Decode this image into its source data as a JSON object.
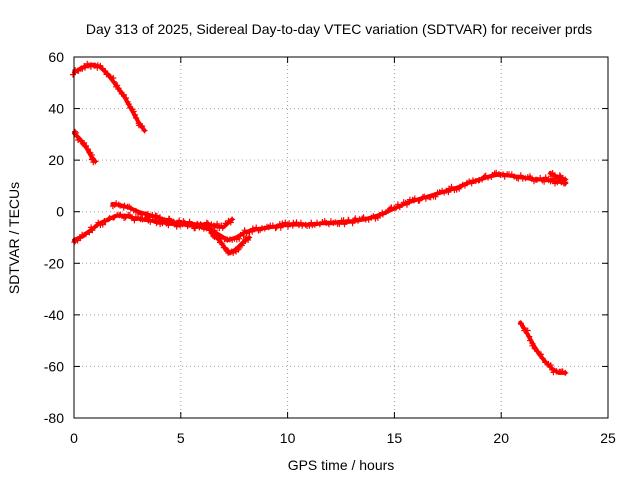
{
  "chart_data": {
    "type": "scatter",
    "title": "Day 313 of 2025, Sidereal Day-to-day VTEC variation (SDTVAR) for receiver prds",
    "xlabel": "GPS time / hours",
    "ylabel": "SDTVAR / TECUs",
    "xlim": [
      0,
      25
    ],
    "ylim": [
      -80,
      60
    ],
    "xticks": [
      0,
      5,
      10,
      15,
      20,
      25
    ],
    "yticks": [
      -80,
      -60,
      -40,
      -20,
      0,
      20,
      40,
      60
    ],
    "xtick_labels": [
      "0",
      "5",
      "10",
      "15",
      "20",
      "25"
    ],
    "ytick_labels": [
      "-80",
      "-60",
      "-40",
      "-20",
      "0",
      "20",
      "40",
      "60"
    ],
    "grid": true,
    "color": "#ff0000",
    "series": [
      {
        "name": "top-left arc",
        "points": [
          [
            0,
            54
          ],
          [
            0.3,
            55.5
          ],
          [
            0.6,
            56.5
          ],
          [
            0.9,
            57
          ],
          [
            1.2,
            56.3
          ],
          [
            1.5,
            54
          ],
          [
            1.8,
            51
          ],
          [
            2.1,
            47.5
          ],
          [
            2.4,
            44
          ],
          [
            2.7,
            39.5
          ],
          [
            3.0,
            35
          ],
          [
            3.3,
            31.5
          ]
        ]
      },
      {
        "name": "short descending segment",
        "points": [
          [
            0,
            30.5
          ],
          [
            0.3,
            28
          ],
          [
            0.6,
            24.5
          ],
          [
            0.8,
            21.5
          ],
          [
            1.0,
            19.5
          ]
        ]
      },
      {
        "name": "main trace",
        "points": [
          [
            0,
            -11
          ],
          [
            0.4,
            -9.5
          ],
          [
            0.8,
            -7
          ],
          [
            1.2,
            -4.5
          ],
          [
            1.6,
            -3
          ],
          [
            2.0,
            -1.5
          ],
          [
            2.4,
            -1.5
          ],
          [
            2.8,
            -2.5
          ],
          [
            3.2,
            -3
          ],
          [
            3.6,
            -3.5
          ],
          [
            4.0,
            -4
          ],
          [
            4.4,
            -4.5
          ],
          [
            4.8,
            -5
          ],
          [
            5.2,
            -5
          ],
          [
            5.6,
            -5.5
          ],
          [
            6.0,
            -6
          ],
          [
            6.4,
            -7
          ],
          [
            6.8,
            -9
          ],
          [
            7.2,
            -11
          ],
          [
            7.6,
            -10
          ],
          [
            8.0,
            -8
          ],
          [
            8.4,
            -7
          ],
          [
            8.8,
            -6.5
          ],
          [
            9.2,
            -6
          ],
          [
            9.6,
            -5.5
          ],
          [
            10.0,
            -5
          ],
          [
            10.4,
            -5
          ],
          [
            10.8,
            -5
          ],
          [
            11.2,
            -5
          ],
          [
            11.6,
            -4.5
          ],
          [
            12.0,
            -4.5
          ],
          [
            12.4,
            -4
          ],
          [
            12.8,
            -4
          ],
          [
            13.2,
            -3.5
          ],
          [
            13.6,
            -3
          ],
          [
            14.0,
            -2
          ],
          [
            14.4,
            -1
          ],
          [
            14.8,
            0.5
          ],
          [
            15.2,
            2
          ],
          [
            15.6,
            3.5
          ],
          [
            16.0,
            4.5
          ],
          [
            16.4,
            5.5
          ],
          [
            16.8,
            6.5
          ],
          [
            17.2,
            7.5
          ],
          [
            17.6,
            8.5
          ],
          [
            18.0,
            9.5
          ],
          [
            18.4,
            11
          ],
          [
            18.8,
            12
          ],
          [
            19.2,
            13
          ],
          [
            19.6,
            14
          ],
          [
            20.0,
            14.5
          ],
          [
            20.4,
            14
          ],
          [
            20.8,
            13.5
          ],
          [
            21.2,
            13
          ],
          [
            21.6,
            12.5
          ],
          [
            22.0,
            12.5
          ],
          [
            22.4,
            12
          ],
          [
            22.8,
            11.5
          ],
          [
            23.0,
            11
          ]
        ]
      },
      {
        "name": "upper branch",
        "points": [
          [
            1.8,
            3
          ],
          [
            2.2,
            2.5
          ],
          [
            2.6,
            1.5
          ],
          [
            3.0,
            0
          ],
          [
            3.4,
            -1
          ],
          [
            3.8,
            -2
          ],
          [
            4.2,
            -3
          ],
          [
            4.6,
            -4
          ],
          [
            5.0,
            -4.5
          ],
          [
            5.4,
            -4.5
          ],
          [
            5.8,
            -5
          ],
          [
            6.2,
            -5
          ],
          [
            6.6,
            -5.5
          ],
          [
            7.0,
            -6
          ],
          [
            7.4,
            -3
          ]
        ]
      },
      {
        "name": "lower dip",
        "points": [
          [
            6.4,
            -8
          ],
          [
            6.8,
            -11
          ],
          [
            7.1,
            -14.5
          ],
          [
            7.3,
            -16
          ],
          [
            7.6,
            -14.5
          ],
          [
            7.9,
            -12
          ],
          [
            8.2,
            -10
          ]
        ]
      },
      {
        "name": "bottom-right descent",
        "points": [
          [
            20.9,
            -43
          ],
          [
            21.2,
            -47
          ],
          [
            21.5,
            -51.5
          ],
          [
            21.8,
            -55.5
          ],
          [
            22.1,
            -58.5
          ],
          [
            22.4,
            -61
          ],
          [
            22.7,
            -62.5
          ],
          [
            23.0,
            -62.5
          ]
        ]
      },
      {
        "name": "end hook",
        "points": [
          [
            22.3,
            15
          ],
          [
            22.6,
            13.5
          ],
          [
            23.0,
            12.5
          ]
        ]
      }
    ]
  }
}
